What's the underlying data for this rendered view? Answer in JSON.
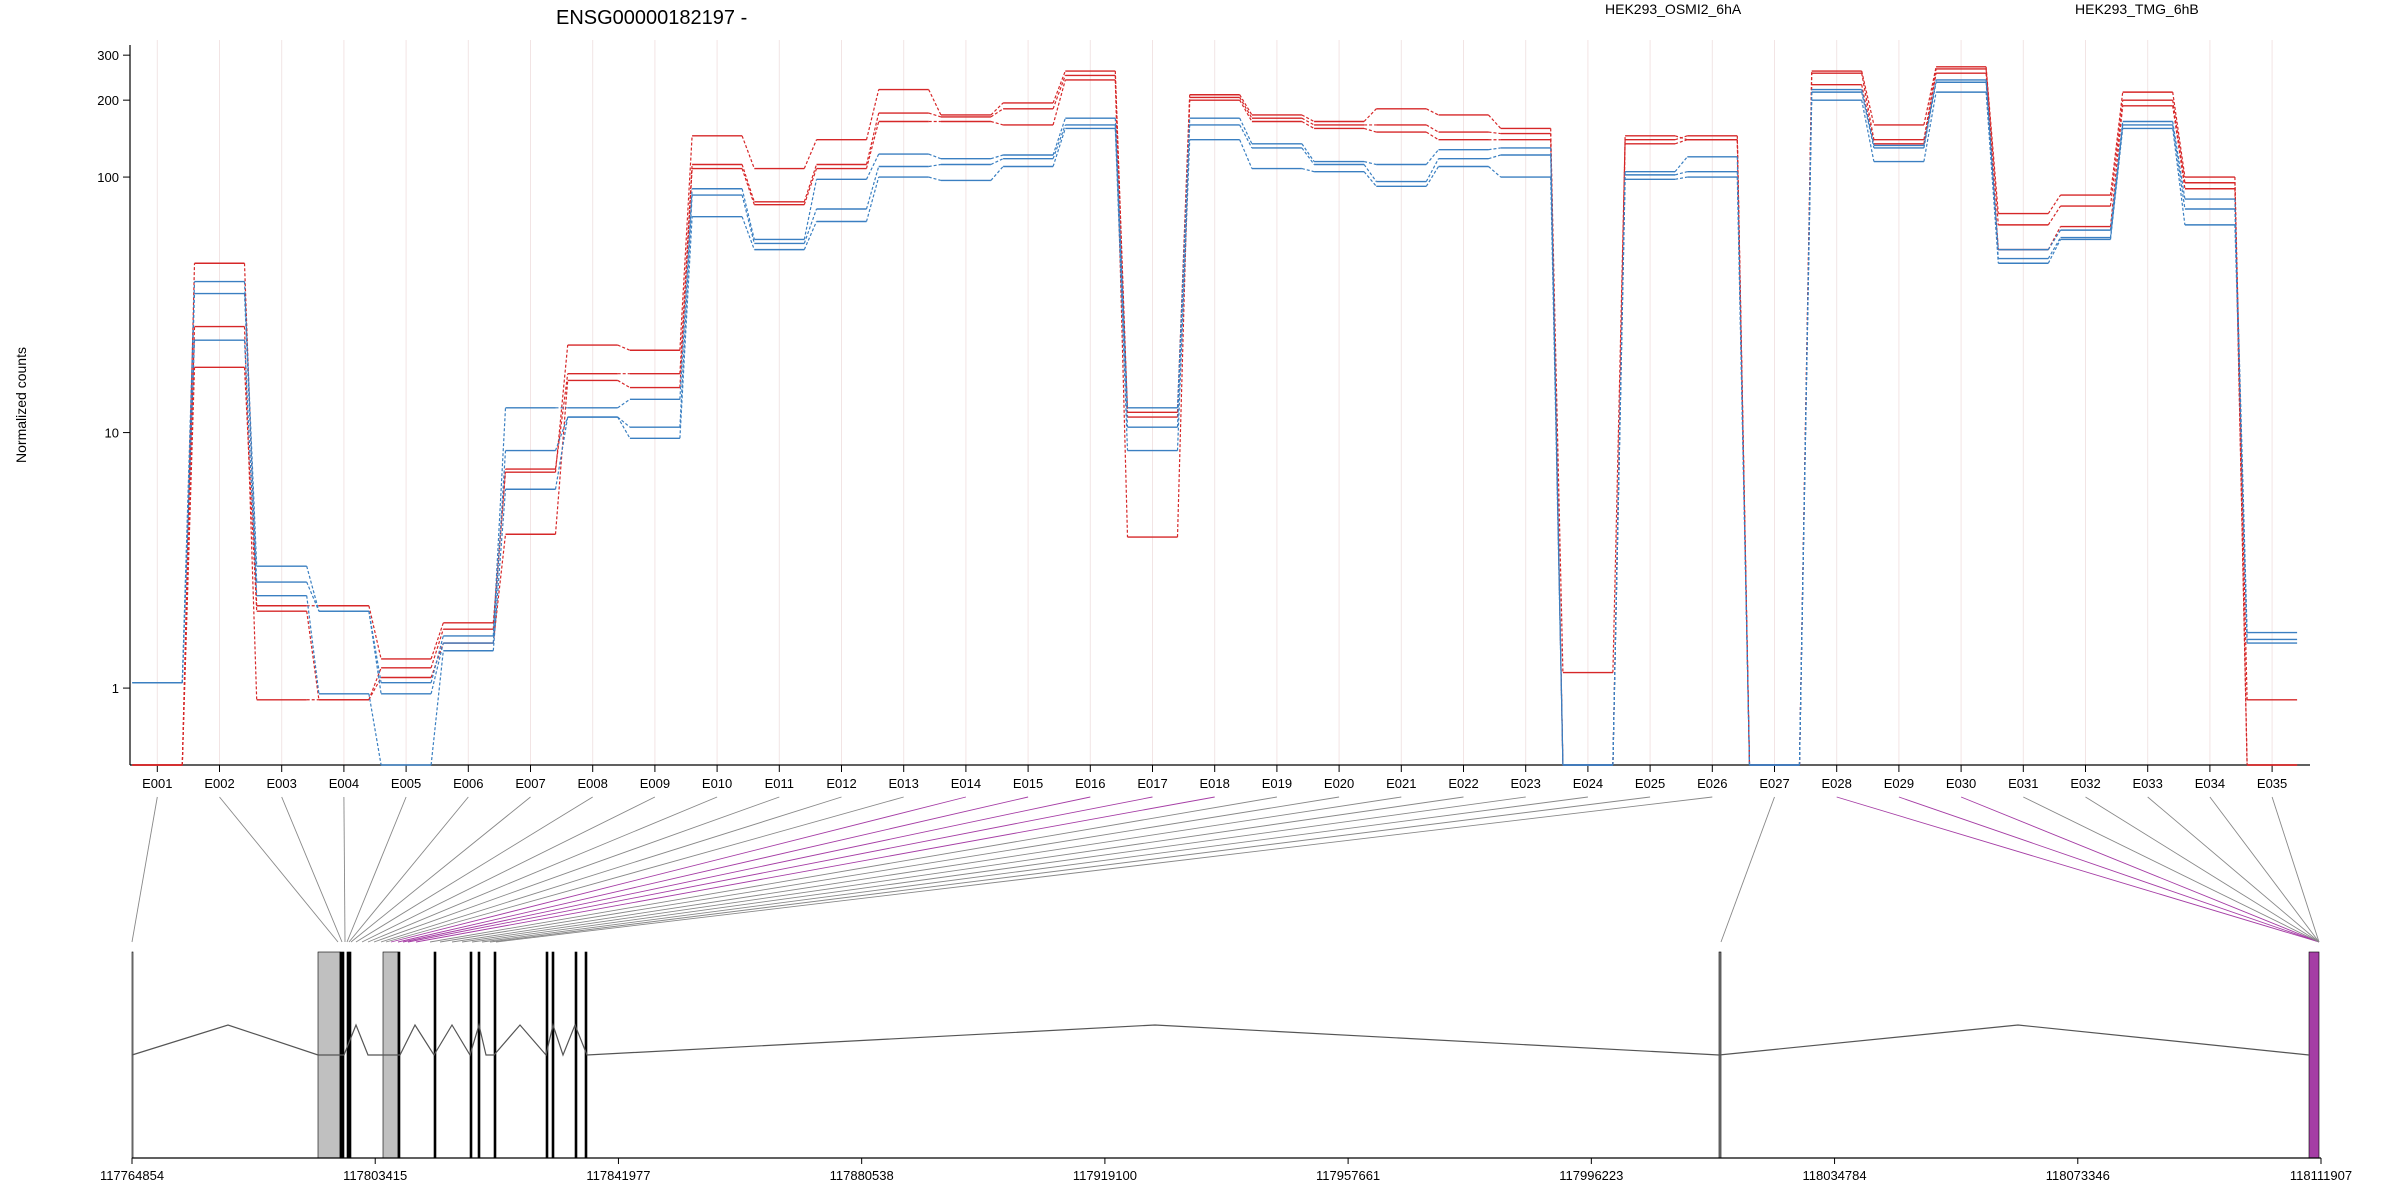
{
  "chart_data": {
    "type": "line",
    "title": "ENSG00000182197 -",
    "ylabel": "Normalized counts",
    "yscale": "log",
    "ylim": [
      0.5,
      320
    ],
    "yticks": [
      1,
      10,
      100,
      200,
      300
    ],
    "categories": [
      "E001",
      "E002",
      "E003",
      "E004",
      "E005",
      "E006",
      "E007",
      "E008",
      "E009",
      "E010",
      "E011",
      "E012",
      "E013",
      "E014",
      "E015",
      "E016",
      "E017",
      "E018",
      "E019",
      "E020",
      "E021",
      "E022",
      "E023",
      "E024",
      "E025",
      "E026",
      "E027",
      "E028",
      "E029",
      "E030",
      "E031",
      "E032",
      "E033",
      "E034",
      "E035"
    ],
    "legend": [
      {
        "name": "HEK293_OSMI2_6hA",
        "color": "#d62728"
      },
      {
        "name": "HEK293_TMG_6hB",
        "color": "#3a7fc1"
      }
    ],
    "series": [
      {
        "group": "HEK293_OSMI2_6hA",
        "color": "#d62728",
        "values": [
          0.5,
          46,
          2.1,
          2.1,
          1.3,
          1.8,
          7,
          22,
          21,
          145,
          108,
          140,
          220,
          175,
          195,
          260,
          12,
          210,
          175,
          165,
          185,
          175,
          155,
          0.5,
          145,
          140,
          0.5,
          260,
          160,
          270,
          72,
          85,
          215,
          100,
          0.9
        ]
      },
      {
        "group": "HEK293_OSMI2_6hA",
        "color": "#d62728",
        "values": [
          0.5,
          26,
          0.9,
          0.9,
          1.2,
          1.7,
          7.2,
          17,
          17,
          112,
          80,
          112,
          178,
          172,
          185,
          250,
          11.5,
          205,
          170,
          160,
          160,
          150,
          148,
          1.15,
          140,
          145,
          0.5,
          255,
          140,
          265,
          65,
          77,
          200,
          95,
          0.5
        ]
      },
      {
        "group": "HEK293_OSMI2_6hA",
        "color": "#d62728",
        "values": [
          0.5,
          18,
          2.0,
          0.9,
          1.1,
          1.5,
          4,
          16,
          15,
          108,
          78,
          108,
          165,
          165,
          160,
          240,
          3.9,
          200,
          165,
          155,
          150,
          140,
          140,
          0.5,
          135,
          140,
          0.5,
          230,
          135,
          255,
          52,
          64,
          190,
          90,
          0.5
        ]
      },
      {
        "group": "HEK293_TMG_6hB",
        "color": "#3a7fc1",
        "values": [
          1.05,
          39,
          3.0,
          2.0,
          1.05,
          1.6,
          12.5,
          12.5,
          13.5,
          90,
          57,
          98,
          123,
          118,
          122,
          170,
          12.5,
          170,
          135,
          115,
          112,
          128,
          130,
          0.5,
          105,
          120,
          0.5,
          220,
          133,
          240,
          52,
          62,
          165,
          82,
          1.65
        ]
      },
      {
        "group": "HEK293_TMG_6hB",
        "color": "#3a7fc1",
        "values": [
          1.05,
          35,
          2.6,
          2.0,
          0.95,
          1.5,
          8.5,
          11.5,
          10.5,
          85,
          55,
          75,
          110,
          112,
          118,
          160,
          10.5,
          160,
          130,
          112,
          96,
          118,
          122,
          0.5,
          102,
          105,
          0.5,
          215,
          130,
          235,
          48,
          58,
          160,
          75,
          1.55
        ]
      },
      {
        "group": "HEK293_TMG_6hB",
        "color": "#3a7fc1",
        "values": [
          1.05,
          23,
          2.3,
          0.95,
          0.5,
          1.4,
          6,
          11.5,
          9.5,
          70,
          52,
          67,
          100,
          97,
          110,
          155,
          8.5,
          140,
          108,
          105,
          92,
          110,
          100,
          0.5,
          98,
          100,
          0.5,
          200,
          115,
          215,
          46,
          57,
          155,
          65,
          1.5
        ]
      }
    ],
    "genomic_axis": {
      "start": 117764854,
      "end": 118111907,
      "tick_labels": [
        "117764854",
        "117803415",
        "117841977",
        "117880538",
        "117919100",
        "117957661",
        "117996223",
        "118034784",
        "118073346",
        "118111907"
      ]
    }
  },
  "transcript_model": {
    "exon_fill_color": "#c0c0c0",
    "highlight_color": "#a53da5",
    "link_color": "#888888"
  }
}
